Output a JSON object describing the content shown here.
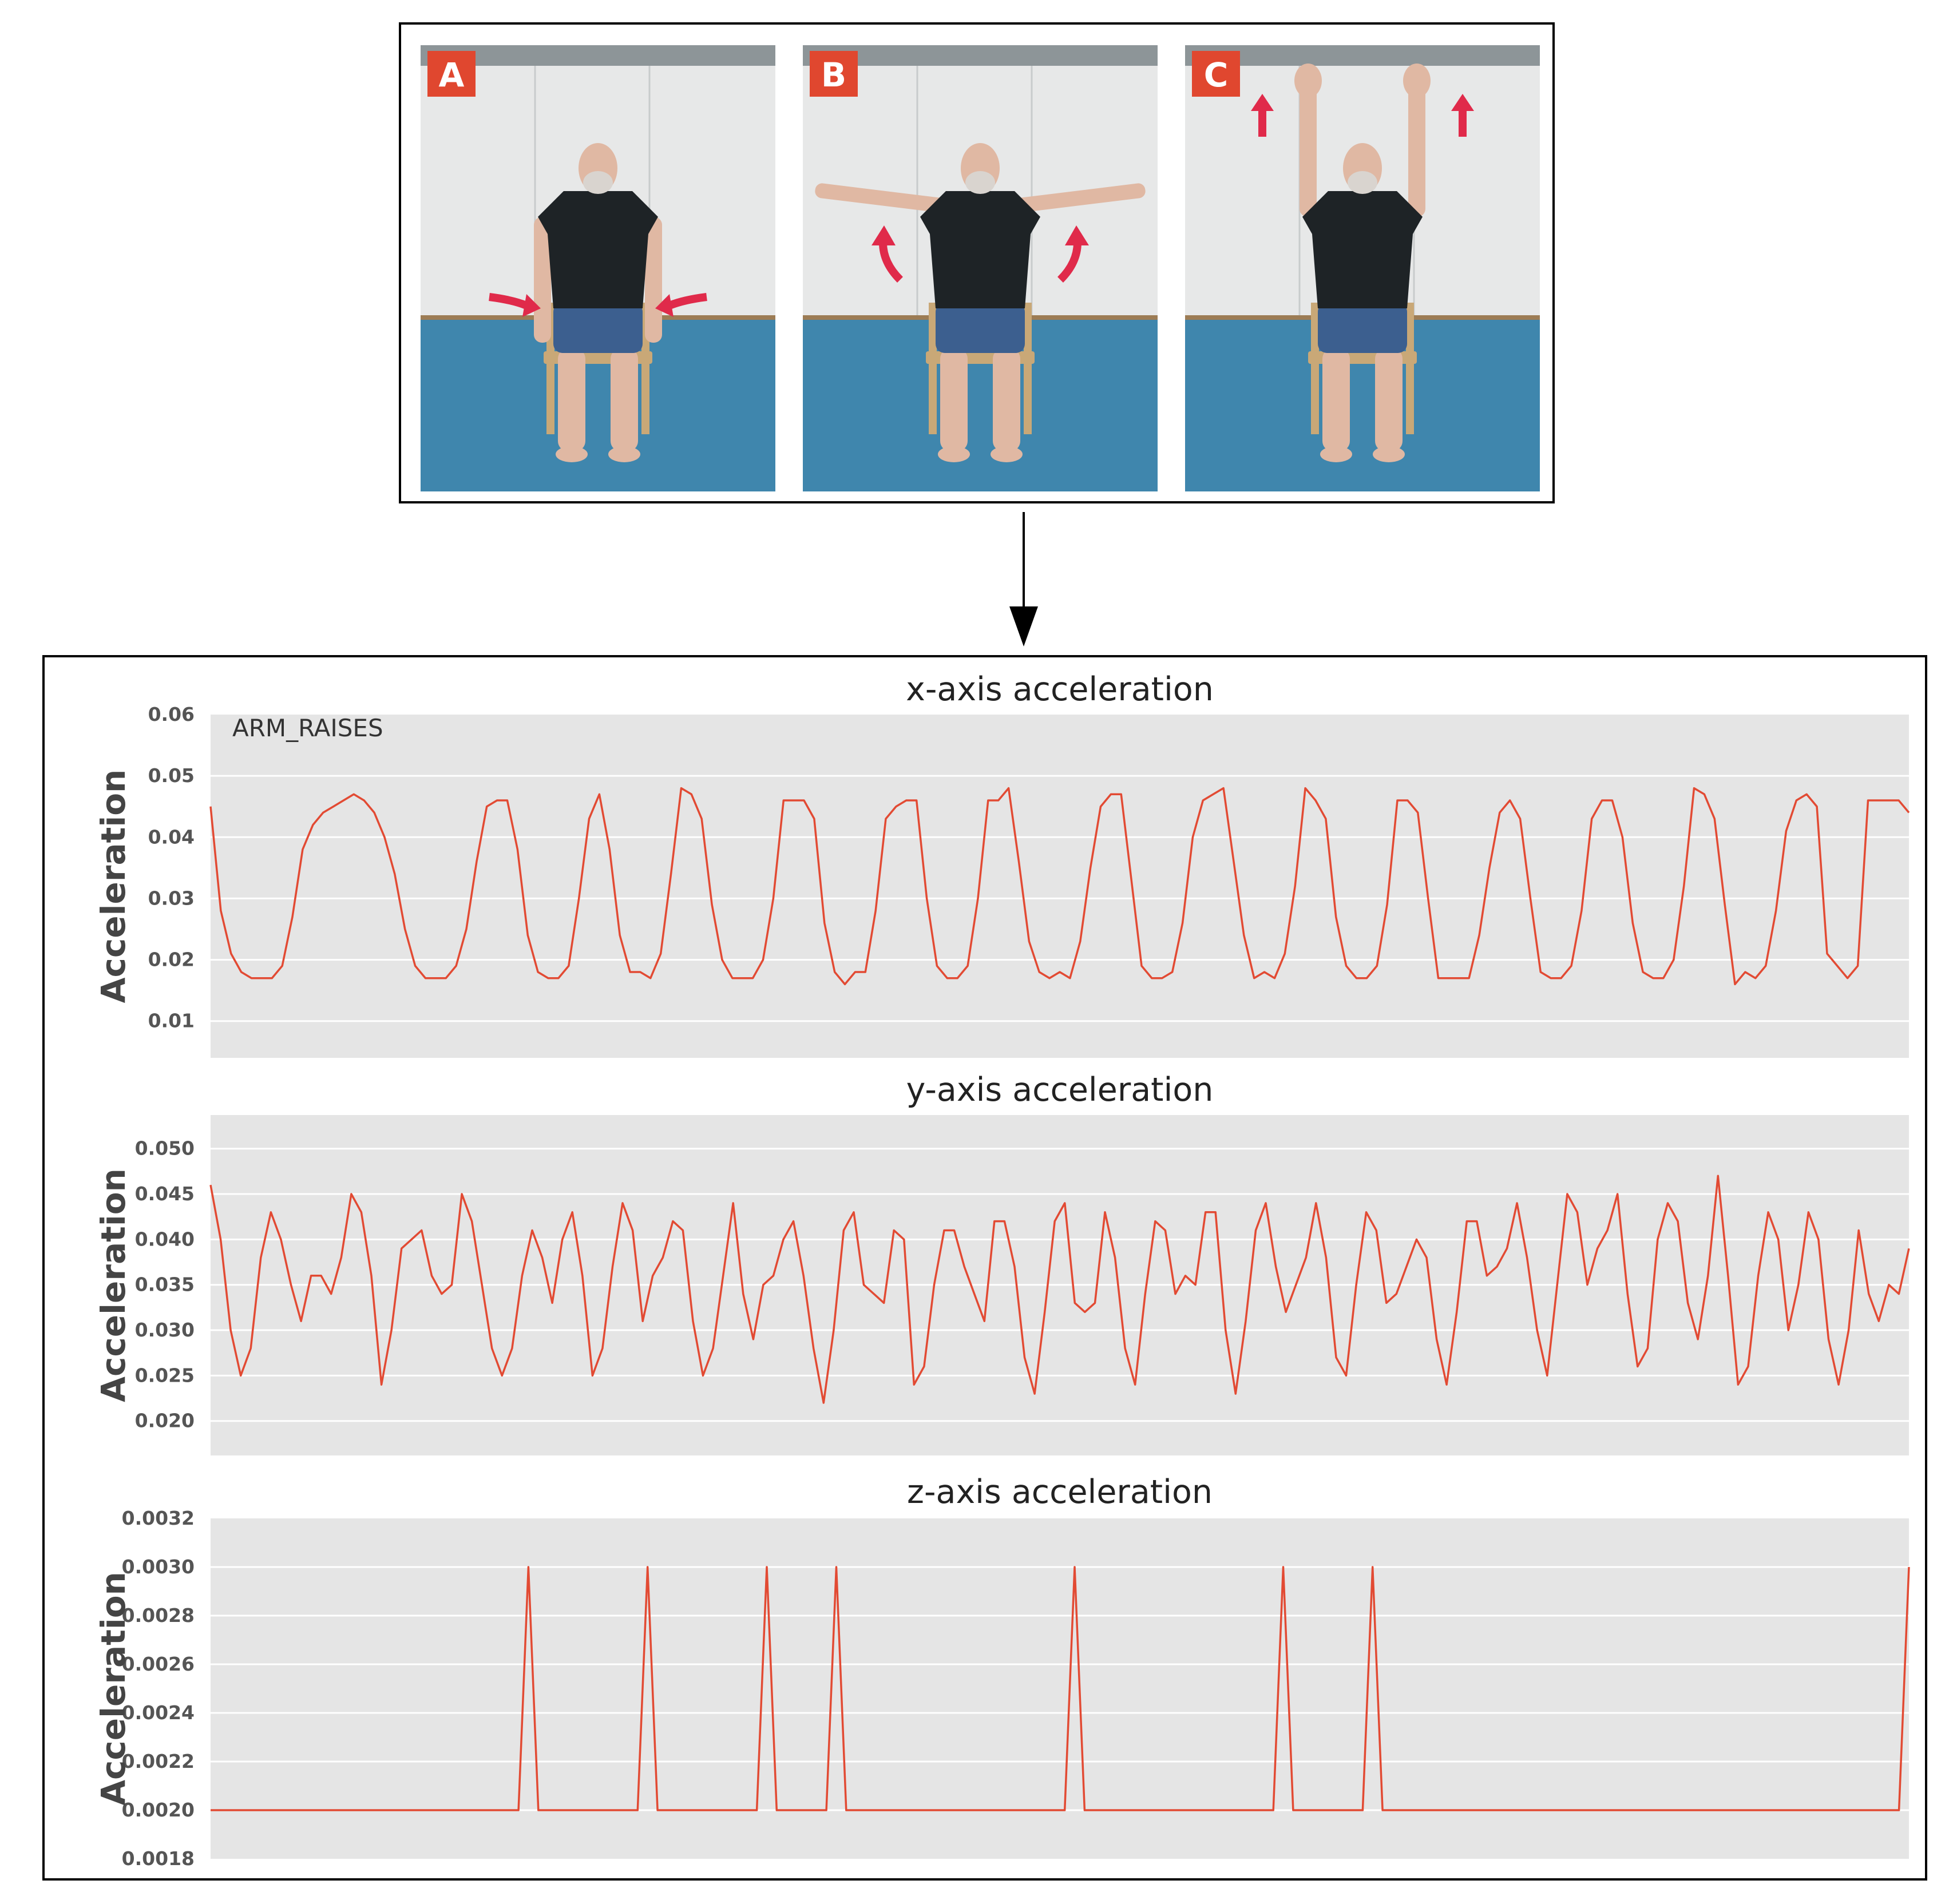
{
  "photos": {
    "panels": [
      {
        "label": "A",
        "pose": "arms-down"
      },
      {
        "label": "B",
        "pose": "arms-side"
      },
      {
        "label": "C",
        "pose": "arms-up"
      }
    ],
    "colors": {
      "wall": "#e7e8e8",
      "floor": "#3f86ad",
      "shirt": "#1e2326",
      "skin": "#e0b8a3",
      "arrow": "#e02a4a",
      "badge": "#e0472f"
    }
  },
  "chart_data": [
    {
      "type": "line",
      "title": "x-axis acceleration",
      "ylabel": "Acceleration",
      "annotation": "ARM_RAISES",
      "ylim": [
        0.004,
        0.06
      ],
      "yticks": [
        0.01,
        0.02,
        0.03,
        0.04,
        0.05,
        0.06
      ],
      "ytick_labels": [
        "0.01",
        "0.02",
        "0.03",
        "0.04",
        "0.05",
        "0.06"
      ],
      "color": "#e24a33",
      "grid": true,
      "values": [
        0.045,
        0.028,
        0.021,
        0.018,
        0.017,
        0.017,
        0.017,
        0.019,
        0.027,
        0.038,
        0.042,
        0.044,
        0.045,
        0.046,
        0.047,
        0.046,
        0.044,
        0.04,
        0.034,
        0.025,
        0.019,
        0.017,
        0.017,
        0.017,
        0.019,
        0.025,
        0.036,
        0.045,
        0.046,
        0.046,
        0.038,
        0.024,
        0.018,
        0.017,
        0.017,
        0.019,
        0.03,
        0.043,
        0.047,
        0.038,
        0.024,
        0.018,
        0.018,
        0.017,
        0.021,
        0.034,
        0.048,
        0.047,
        0.043,
        0.029,
        0.02,
        0.017,
        0.017,
        0.017,
        0.02,
        0.03,
        0.046,
        0.046,
        0.046,
        0.043,
        0.026,
        0.018,
        0.016,
        0.018,
        0.018,
        0.028,
        0.043,
        0.045,
        0.046,
        0.046,
        0.03,
        0.019,
        0.017,
        0.017,
        0.019,
        0.03,
        0.046,
        0.046,
        0.048,
        0.036,
        0.023,
        0.018,
        0.017,
        0.018,
        0.017,
        0.023,
        0.035,
        0.045,
        0.047,
        0.047,
        0.033,
        0.019,
        0.017,
        0.017,
        0.018,
        0.026,
        0.04,
        0.046,
        0.047,
        0.048,
        0.036,
        0.024,
        0.017,
        0.018,
        0.017,
        0.021,
        0.032,
        0.048,
        0.046,
        0.043,
        0.027,
        0.019,
        0.017,
        0.017,
        0.019,
        0.029,
        0.046,
        0.046,
        0.044,
        0.03,
        0.017,
        0.017,
        0.017,
        0.017,
        0.024,
        0.035,
        0.044,
        0.046,
        0.043,
        0.03,
        0.018,
        0.017,
        0.017,
        0.019,
        0.028,
        0.043,
        0.046,
        0.046,
        0.04,
        0.026,
        0.018,
        0.017,
        0.017,
        0.02,
        0.032,
        0.048,
        0.047,
        0.043,
        0.029,
        0.016,
        0.018,
        0.017,
        0.019,
        0.028,
        0.041,
        0.046,
        0.047,
        0.045,
        0.021,
        0.019,
        0.017,
        0.019,
        0.046,
        0.046,
        0.046,
        0.046,
        0.044
      ]
    },
    {
      "type": "line",
      "title": "y-axis acceleration",
      "ylabel": "Acceleration",
      "ylim": [
        0.0162,
        0.0537
      ],
      "yticks": [
        0.02,
        0.025,
        0.03,
        0.035,
        0.04,
        0.045,
        0.05
      ],
      "ytick_labels": [
        "0.020",
        "0.025",
        "0.030",
        "0.035",
        "0.040",
        "0.045",
        "0.050"
      ],
      "color": "#e24a33",
      "grid": true,
      "values": [
        0.046,
        0.04,
        0.03,
        0.025,
        0.028,
        0.038,
        0.043,
        0.04,
        0.035,
        0.031,
        0.036,
        0.036,
        0.034,
        0.038,
        0.045,
        0.043,
        0.036,
        0.024,
        0.03,
        0.039,
        0.04,
        0.041,
        0.036,
        0.034,
        0.035,
        0.045,
        0.042,
        0.035,
        0.028,
        0.025,
        0.028,
        0.036,
        0.041,
        0.038,
        0.033,
        0.04,
        0.043,
        0.036,
        0.025,
        0.028,
        0.037,
        0.044,
        0.041,
        0.031,
        0.036,
        0.038,
        0.042,
        0.041,
        0.031,
        0.025,
        0.028,
        0.036,
        0.044,
        0.034,
        0.029,
        0.035,
        0.036,
        0.04,
        0.042,
        0.036,
        0.028,
        0.022,
        0.03,
        0.041,
        0.043,
        0.035,
        0.034,
        0.033,
        0.041,
        0.04,
        0.024,
        0.026,
        0.035,
        0.041,
        0.041,
        0.037,
        0.034,
        0.031,
        0.042,
        0.042,
        0.037,
        0.027,
        0.023,
        0.032,
        0.042,
        0.044,
        0.033,
        0.032,
        0.033,
        0.043,
        0.038,
        0.028,
        0.024,
        0.034,
        0.042,
        0.041,
        0.034,
        0.036,
        0.035,
        0.043,
        0.043,
        0.03,
        0.023,
        0.031,
        0.041,
        0.044,
        0.037,
        0.032,
        0.035,
        0.038,
        0.044,
        0.038,
        0.027,
        0.025,
        0.035,
        0.043,
        0.041,
        0.033,
        0.034,
        0.037,
        0.04,
        0.038,
        0.029,
        0.024,
        0.032,
        0.042,
        0.042,
        0.036,
        0.037,
        0.039,
        0.044,
        0.038,
        0.03,
        0.025,
        0.035,
        0.045,
        0.043,
        0.035,
        0.039,
        0.041,
        0.045,
        0.034,
        0.026,
        0.028,
        0.04,
        0.044,
        0.042,
        0.033,
        0.029,
        0.036,
        0.047,
        0.036,
        0.024,
        0.026,
        0.036,
        0.043,
        0.04,
        0.03,
        0.035,
        0.043,
        0.04,
        0.029,
        0.024,
        0.03,
        0.041,
        0.034,
        0.031,
        0.035,
        0.034,
        0.039
      ]
    },
    {
      "type": "line",
      "title": "z-axis acceleration",
      "ylabel": "Acceleration",
      "ylim": [
        0.0018,
        0.0032
      ],
      "yticks": [
        0.0018,
        0.002,
        0.0022,
        0.0024,
        0.0026,
        0.0028,
        0.003,
        0.0032
      ],
      "ytick_labels": [
        "0.0018",
        "0.0020",
        "0.0022",
        "0.0024",
        "0.0026",
        "0.0028",
        "0.0030",
        "0.0032"
      ],
      "color": "#e24a33",
      "grid": true,
      "values": [
        0.002,
        0.002,
        0.002,
        0.002,
        0.002,
        0.002,
        0.002,
        0.002,
        0.002,
        0.002,
        0.002,
        0.002,
        0.002,
        0.002,
        0.002,
        0.002,
        0.002,
        0.002,
        0.002,
        0.002,
        0.002,
        0.002,
        0.002,
        0.002,
        0.002,
        0.002,
        0.002,
        0.002,
        0.002,
        0.002,
        0.002,
        0.002,
        0.003,
        0.002,
        0.002,
        0.002,
        0.002,
        0.002,
        0.002,
        0.002,
        0.002,
        0.002,
        0.002,
        0.002,
        0.003,
        0.002,
        0.002,
        0.002,
        0.002,
        0.002,
        0.002,
        0.002,
        0.002,
        0.002,
        0.002,
        0.002,
        0.003,
        0.002,
        0.002,
        0.002,
        0.002,
        0.002,
        0.002,
        0.003,
        0.002,
        0.002,
        0.002,
        0.002,
        0.002,
        0.002,
        0.002,
        0.002,
        0.002,
        0.002,
        0.002,
        0.002,
        0.002,
        0.002,
        0.002,
        0.002,
        0.002,
        0.002,
        0.002,
        0.002,
        0.002,
        0.002,
        0.002,
        0.003,
        0.002,
        0.002,
        0.002,
        0.002,
        0.002,
        0.002,
        0.002,
        0.002,
        0.002,
        0.002,
        0.002,
        0.002,
        0.002,
        0.002,
        0.002,
        0.002,
        0.002,
        0.002,
        0.002,
        0.002,
        0.003,
        0.002,
        0.002,
        0.002,
        0.002,
        0.002,
        0.002,
        0.002,
        0.002,
        0.003,
        0.002,
        0.002,
        0.002,
        0.002,
        0.002,
        0.002,
        0.002,
        0.002,
        0.002,
        0.002,
        0.002,
        0.002,
        0.002,
        0.002,
        0.002,
        0.002,
        0.002,
        0.002,
        0.002,
        0.002,
        0.002,
        0.002,
        0.002,
        0.002,
        0.002,
        0.002,
        0.002,
        0.002,
        0.002,
        0.002,
        0.002,
        0.002,
        0.002,
        0.002,
        0.002,
        0.002,
        0.002,
        0.002,
        0.002,
        0.002,
        0.002,
        0.002,
        0.002,
        0.002,
        0.002,
        0.002,
        0.002,
        0.002,
        0.002,
        0.002,
        0.002,
        0.002,
        0.002,
        0.003
      ]
    }
  ]
}
